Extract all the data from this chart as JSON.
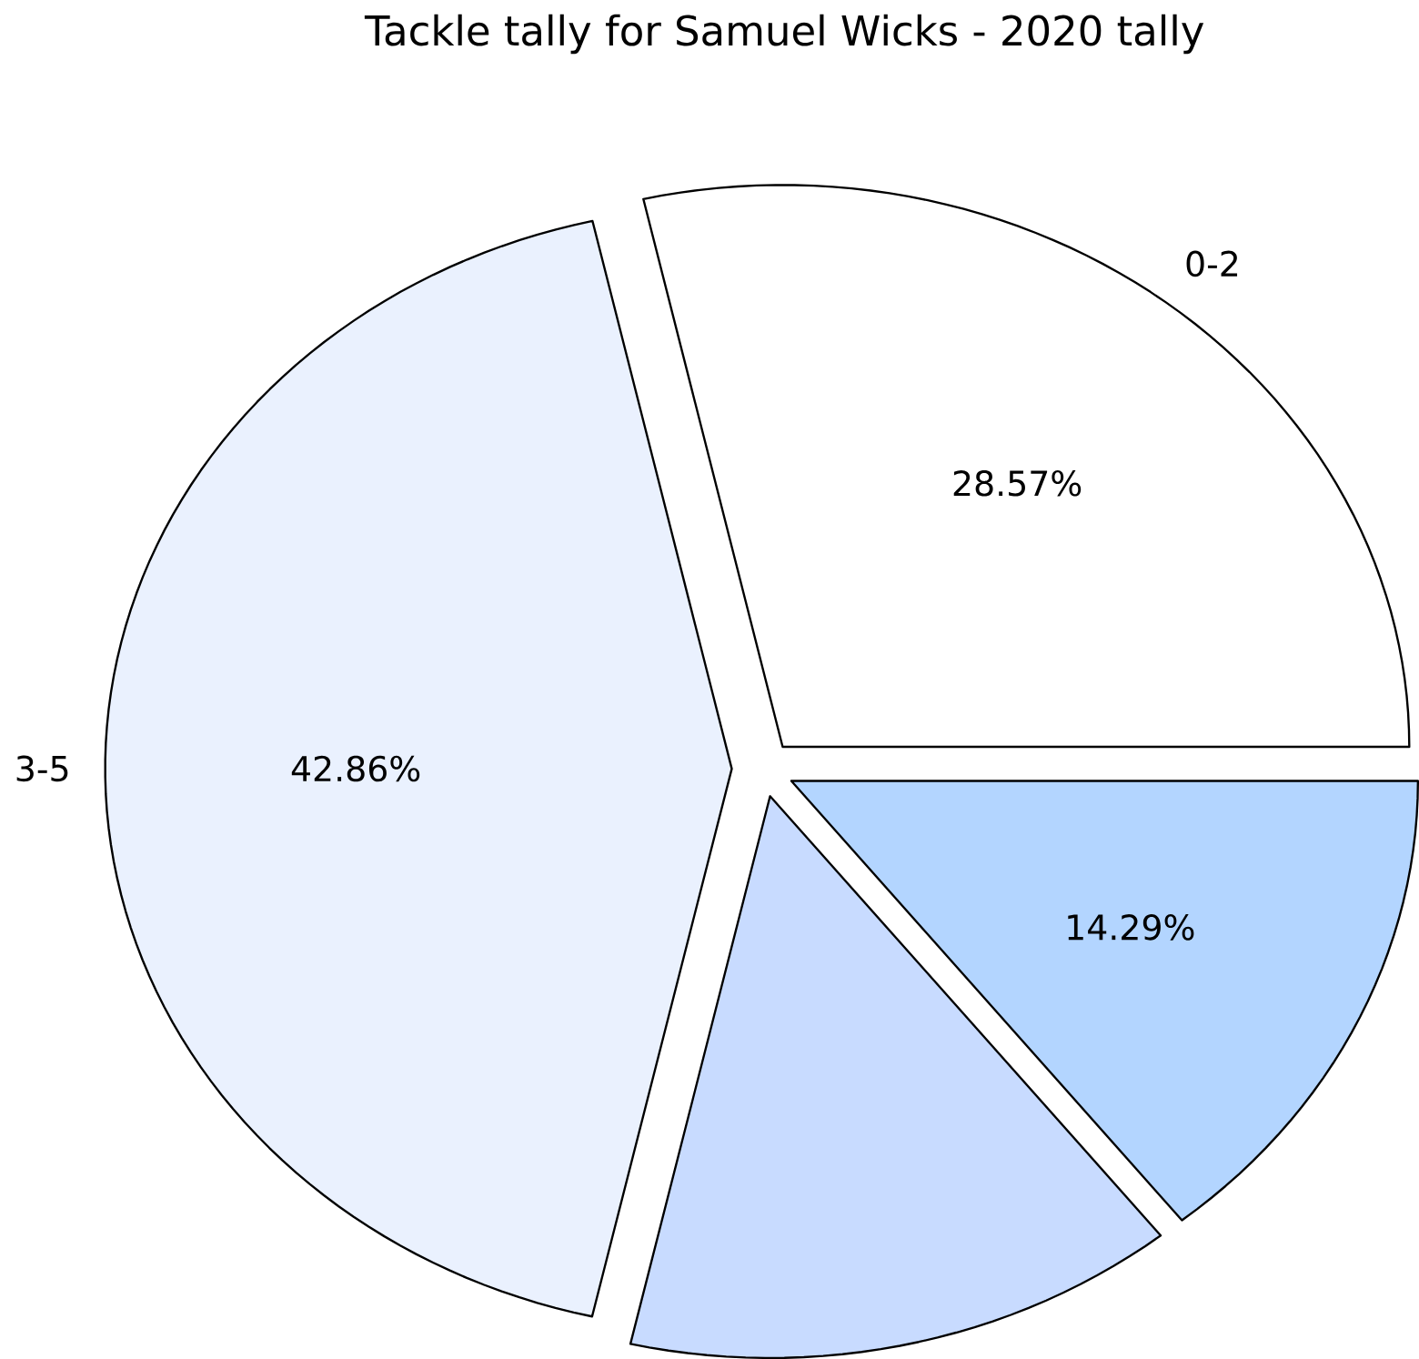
{
  "chart_data": {
    "type": "pie",
    "title": "Tackle tally for Samuel Wicks - 2020 tally",
    "categories": [
      "0-2",
      "3-5",
      null,
      null
    ],
    "values": [
      28.57,
      42.86,
      14.29,
      14.29
    ],
    "colors": [
      "#ffffff",
      "#eaf1fe",
      "#c8dbff",
      "#b3d5ff"
    ],
    "value_labels": [
      "28.57%",
      "42.86%",
      null,
      "14.29%"
    ]
  }
}
